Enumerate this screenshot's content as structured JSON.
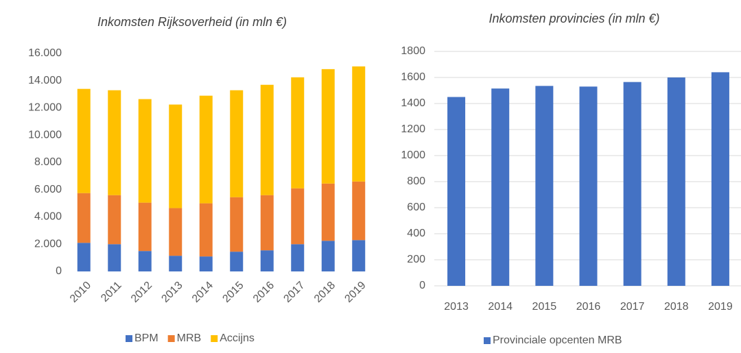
{
  "chart_data": [
    {
      "type": "stacked_bar",
      "title": "Inkomsten Rijksoverheid (in mln €)",
      "categories": [
        "2010",
        "2011",
        "2012",
        "2013",
        "2014",
        "2015",
        "2016",
        "2017",
        "2018",
        "2019"
      ],
      "series": [
        {
          "name": "BPM",
          "color": "#4472c4",
          "values": [
            2100,
            2000,
            1500,
            1150,
            1100,
            1450,
            1550,
            2000,
            2250,
            2300
          ]
        },
        {
          "name": "MRB",
          "color": "#ed7d31",
          "values": [
            3650,
            3600,
            3550,
            3500,
            3900,
            4000,
            4050,
            4100,
            4200,
            4300
          ]
        },
        {
          "name": "Accijns",
          "color": "#ffc000",
          "values": [
            7650,
            7700,
            7600,
            7600,
            7900,
            7850,
            8100,
            8150,
            8400,
            8450
          ]
        }
      ],
      "ylim": [
        0,
        16000
      ],
      "yticks": [
        0,
        {
          "value": 2000,
          "label": "2.000"
        },
        {
          "value": 4000,
          "label": "4.000"
        },
        {
          "value": 6000,
          "label": "6.000"
        },
        {
          "value": 8000,
          "label": "8.000"
        },
        {
          "value": 10000,
          "label": "10.000"
        },
        {
          "value": 12000,
          "label": "12.000"
        },
        {
          "value": 14000,
          "label": "14.000"
        },
        {
          "value": 16000,
          "label": "16.000"
        }
      ],
      "grid": false,
      "legend": "bottom"
    },
    {
      "type": "bar",
      "title": "Inkomsten provincies (in mln €)",
      "categories": [
        "2013",
        "2014",
        "2015",
        "2016",
        "2017",
        "2018",
        "2019"
      ],
      "series": [
        {
          "name": "Provinciale opcenten MRB",
          "color": "#4472c4",
          "values": [
            1450,
            1515,
            1535,
            1530,
            1565,
            1600,
            1640
          ]
        }
      ],
      "ylim": [
        0,
        1800
      ],
      "yticks": [
        0,
        200,
        400,
        600,
        800,
        1000,
        1200,
        1400,
        1600,
        1800
      ],
      "grid": true,
      "legend": "bottom"
    }
  ]
}
